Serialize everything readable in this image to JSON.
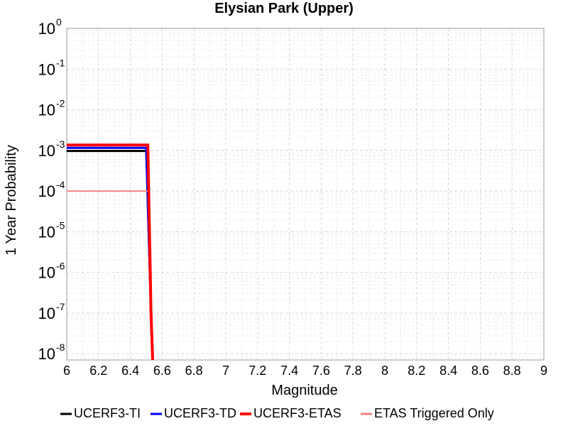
{
  "chart_data": {
    "type": "line",
    "title": "Elysian Park (Upper)",
    "xlabel": "Magnitude",
    "ylabel": "1 Year Probability",
    "xlim": [
      6,
      9
    ],
    "ylim": [
      7e-09,
      1
    ],
    "y_scale": "log",
    "grid": true,
    "legend_position": "bottom",
    "x_ticks": [
      "6",
      "6.2",
      "6.4",
      "6.6",
      "6.8",
      "7",
      "7.2",
      "7.4",
      "7.6",
      "7.8",
      "8",
      "8.2",
      "8.4",
      "8.6",
      "8.8",
      "9"
    ],
    "y_ticks": [
      {
        "base": "10",
        "exp": "0"
      },
      {
        "base": "10",
        "exp": "-1"
      },
      {
        "base": "10",
        "exp": "-2"
      },
      {
        "base": "10",
        "exp": "-3"
      },
      {
        "base": "10",
        "exp": "-4"
      },
      {
        "base": "10",
        "exp": "-5"
      },
      {
        "base": "10",
        "exp": "-6"
      },
      {
        "base": "10",
        "exp": "-7"
      },
      {
        "base": "10",
        "exp": "-8"
      }
    ],
    "series": [
      {
        "name": "UCERF3-TI",
        "color": "#000000",
        "width": 3,
        "x": [
          6.0,
          6.5,
          6.5,
          6.53,
          6.54
        ],
        "y": [
          0.00097,
          0.00097,
          0.00097,
          1e-07,
          7e-09
        ]
      },
      {
        "name": "UCERF3-TD",
        "color": "#0000ff",
        "width": 3,
        "x": [
          6.0,
          6.5,
          6.5,
          6.53,
          6.54
        ],
        "y": [
          0.00115,
          0.00115,
          0.00115,
          1e-07,
          7e-09
        ]
      },
      {
        "name": "UCERF3-ETAS",
        "color": "#ff0000",
        "width": 4,
        "x": [
          6.0,
          6.51,
          6.51,
          6.53,
          6.54
        ],
        "y": [
          0.00135,
          0.00135,
          0.00135,
          1e-07,
          7e-09
        ]
      },
      {
        "name": "ETAS Triggered Only",
        "color": "#f08080",
        "width": 2,
        "x": [
          6.0,
          6.51,
          6.51
        ],
        "y": [
          0.0001,
          0.0001,
          0.0001
        ]
      }
    ]
  }
}
